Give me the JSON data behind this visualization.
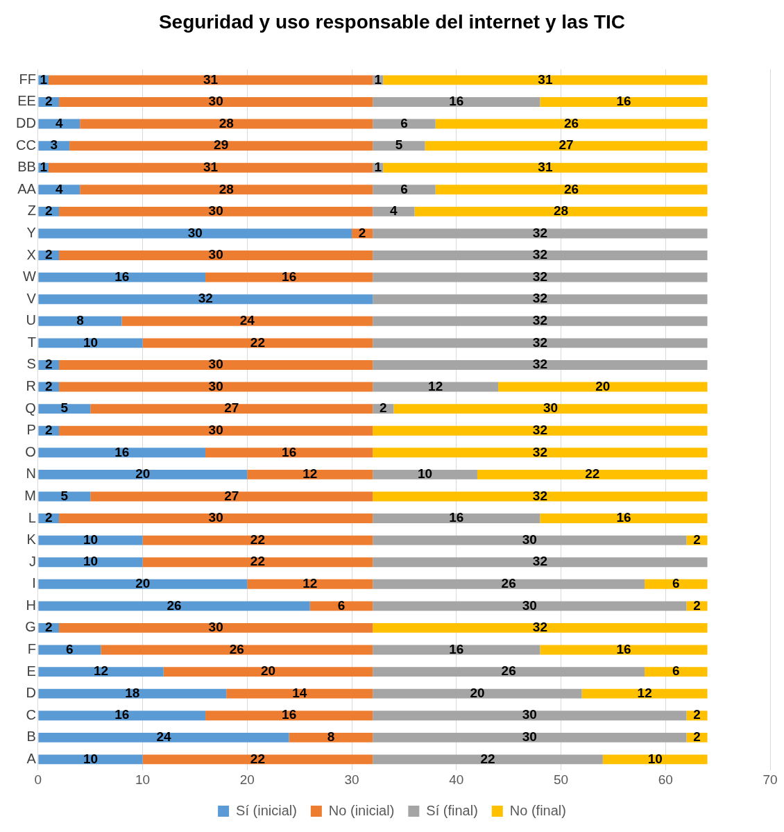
{
  "chart_data": {
    "type": "bar",
    "title": "Seguridad y uso responsable del internet y las TIC",
    "orientation": "horizontal",
    "stacked": true,
    "data_labels": true,
    "grid": "x",
    "legend": "bottom",
    "categories": [
      "FF",
      "EE",
      "DD",
      "CC",
      "BB",
      "AA",
      "Z",
      "Y",
      "X",
      "W",
      "V",
      "U",
      "T",
      "S",
      "R",
      "Q",
      "P",
      "O",
      "N",
      "M",
      "L",
      "K",
      "J",
      "I",
      "H",
      "G",
      "F",
      "E",
      "D",
      "C",
      "B",
      "A"
    ],
    "xlim": [
      0,
      70
    ],
    "xticks": [
      0,
      10,
      20,
      30,
      40,
      50,
      60,
      70
    ],
    "series": [
      {
        "name": "Sí (inicial)",
        "color": "#5b9bd5",
        "values": [
          1,
          2,
          4,
          3,
          1,
          4,
          2,
          30,
          2,
          16,
          32,
          8,
          10,
          2,
          2,
          5,
          2,
          16,
          20,
          5,
          2,
          10,
          10,
          20,
          26,
          2,
          6,
          12,
          18,
          16,
          24,
          10
        ]
      },
      {
        "name": "No (inicial)",
        "color": "#ed7d31",
        "values": [
          31,
          30,
          28,
          29,
          31,
          28,
          30,
          2,
          30,
          16,
          null,
          24,
          22,
          30,
          30,
          27,
          30,
          16,
          12,
          27,
          30,
          22,
          22,
          12,
          6,
          30,
          26,
          20,
          14,
          16,
          8,
          22
        ]
      },
      {
        "name": "Sí (final)",
        "color": "#a5a5a5",
        "values": [
          1,
          16,
          6,
          5,
          1,
          6,
          4,
          32,
          32,
          32,
          32,
          32,
          32,
          32,
          12,
          2,
          null,
          null,
          10,
          null,
          16,
          30,
          32,
          26,
          30,
          null,
          16,
          26,
          20,
          30,
          30,
          22
        ]
      },
      {
        "name": "No (final)",
        "color": "#ffc000",
        "values": [
          31,
          16,
          26,
          27,
          31,
          26,
          28,
          null,
          null,
          null,
          null,
          null,
          null,
          null,
          20,
          30,
          32,
          32,
          22,
          32,
          16,
          2,
          null,
          6,
          2,
          32,
          16,
          6,
          12,
          2,
          2,
          10
        ]
      }
    ]
  }
}
